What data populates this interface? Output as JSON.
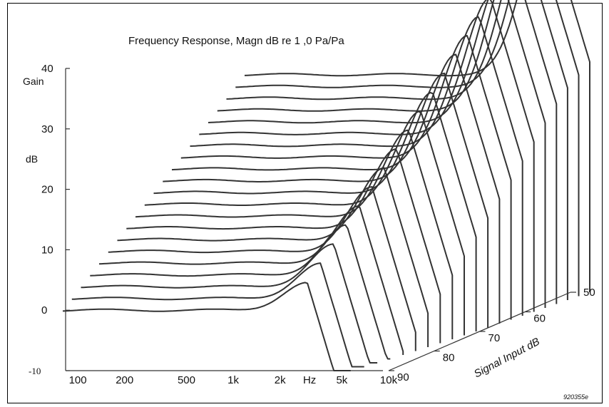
{
  "chart_data": {
    "type": "line",
    "subtype": "waterfall-3d",
    "title": "Frequency Response, Magn dB re 1 ,0 Pa/Pa",
    "ylabel": [
      "Gain",
      "dB"
    ],
    "yticks": [
      "40",
      "30",
      "20",
      "10",
      "0",
      "-10"
    ],
    "ylim": [
      -10,
      40
    ],
    "xlabel": "Hz",
    "xscale": "log",
    "xticks": [
      {
        "label": "100",
        "hz": 100
      },
      {
        "label": "200",
        "hz": 200
      },
      {
        "label": "500",
        "hz": 500
      },
      {
        "label": "1k",
        "hz": 1000
      },
      {
        "label": "2k",
        "hz": 2000
      },
      {
        "label": "Hz",
        "hz": 3100
      },
      {
        "label": "5k",
        "hz": 5000
      },
      {
        "label": "10k",
        "hz": 10000
      }
    ],
    "depth_axis_label": "Signal Input dB",
    "depth_ticks": [
      "50",
      "60",
      "70",
      "80",
      "90"
    ],
    "depth_range": [
      50,
      90
    ],
    "grid": false,
    "legend": "none",
    "line_color": "#333333",
    "figure_code": "920355e",
    "series": [
      {
        "input_db": 90,
        "low_gain": 0,
        "peak_gain": 4.5,
        "peak_hz": 3000
      },
      {
        "input_db": 88,
        "low_gain": 1.3,
        "peak_gain": 7,
        "peak_hz": 3200
      },
      {
        "input_db": 86,
        "low_gain": 2.6,
        "peak_gain": 9.5,
        "peak_hz": 3400
      },
      {
        "input_db": 84,
        "low_gain": 3.9,
        "peak_gain": 12,
        "peak_hz": 3600
      },
      {
        "input_db": 82,
        "low_gain": 5.2,
        "peak_gain": 14.5,
        "peak_hz": 3800
      },
      {
        "input_db": 80,
        "low_gain": 6.5,
        "peak_gain": 17,
        "peak_hz": 4000
      },
      {
        "input_db": 78,
        "low_gain": 7.8,
        "peak_gain": 19.5,
        "peak_hz": 4200
      },
      {
        "input_db": 76,
        "low_gain": 9.1,
        "peak_gain": 22,
        "peak_hz": 4400
      },
      {
        "input_db": 74,
        "low_gain": 10.4,
        "peak_gain": 24.5,
        "peak_hz": 4600
      },
      {
        "input_db": 72,
        "low_gain": 11.7,
        "peak_gain": 27,
        "peak_hz": 4800
      },
      {
        "input_db": 70,
        "low_gain": 13,
        "peak_gain": 29.5,
        "peak_hz": 5000
      },
      {
        "input_db": 68,
        "low_gain": 14.3,
        "peak_gain": 32,
        "peak_hz": 5200
      },
      {
        "input_db": 66,
        "low_gain": 15.6,
        "peak_gain": 34.5,
        "peak_hz": 5400
      },
      {
        "input_db": 64,
        "low_gain": 16.9,
        "peak_gain": 37,
        "peak_hz": 5600
      },
      {
        "input_db": 62,
        "low_gain": 18.2,
        "peak_gain": 39.5,
        "peak_hz": 5800
      },
      {
        "input_db": 60,
        "low_gain": 19.5,
        "peak_gain": 42,
        "peak_hz": 6000
      },
      {
        "input_db": 58,
        "low_gain": 20.8,
        "peak_gain": 44.5,
        "peak_hz": 6200
      },
      {
        "input_db": 56,
        "low_gain": 22.1,
        "peak_gain": 47,
        "peak_hz": 6400
      },
      {
        "input_db": 54,
        "low_gain": 23.4,
        "peak_gain": 49,
        "peak_hz": 6600
      },
      {
        "input_db": 52,
        "low_gain": 24.7,
        "peak_gain": 50.5,
        "peak_hz": 6800
      },
      {
        "input_db": 50,
        "low_gain": 26,
        "peak_gain": 52,
        "peak_hz": 7000
      }
    ]
  }
}
